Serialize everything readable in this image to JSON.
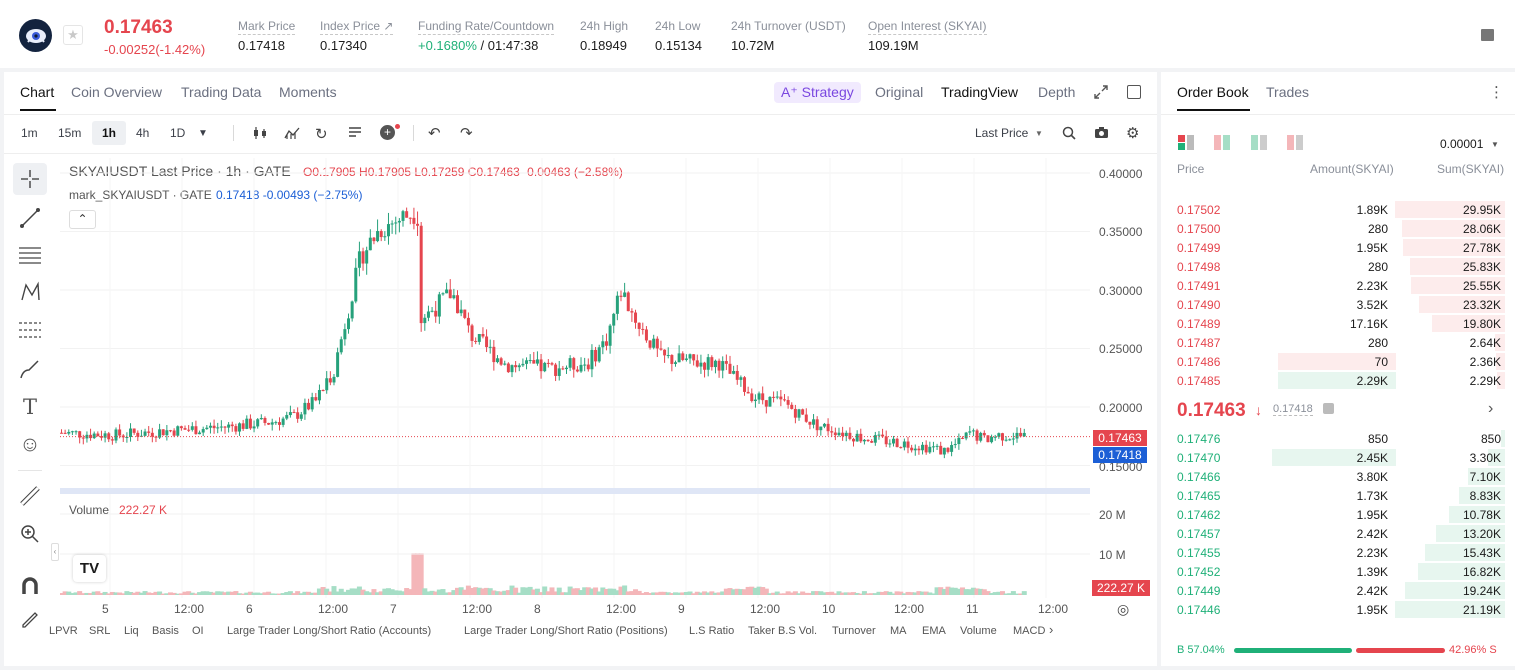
{
  "header": {
    "last_price": "0.17463",
    "price_change": "-0.00252(-1.42%)",
    "stats": [
      {
        "label": "Mark Price",
        "value": "0.17418"
      },
      {
        "label": "Index Price ↗",
        "value": "0.17340"
      },
      {
        "label": "Funding Rate/Countdown",
        "value_green": "+0.1680%",
        "value": "/ 01:47:38"
      },
      {
        "label": "24h High",
        "value": "0.18949"
      },
      {
        "label": "24h Low",
        "value": "0.15134"
      },
      {
        "label": "24h Turnover (USDT)",
        "value": "10.72M"
      },
      {
        "label": "Open Interest (SKYAI)",
        "value": "109.19M"
      }
    ]
  },
  "chart_tabs": [
    "Chart",
    "Coin Overview",
    "Trading Data",
    "Moments"
  ],
  "view_tabs": {
    "strategy": "A⁺ Strategy",
    "original": "Original",
    "tradingview": "TradingView",
    "depth": "Depth"
  },
  "timeframes": [
    "1m",
    "15m",
    "1h",
    "4h",
    "1D"
  ],
  "toolbar": {
    "price_type": "Last Price"
  },
  "legend": {
    "main": "SKYAIUSDT Last Price · 1h · GATE",
    "ohlc": "O0.17905  H0.17905  L0.17259  C0.17463  -0.00463  (−2.58%)",
    "mark": "mark_SKYAIUSDT · GATE",
    "mark_vals": "0.17418  -0.00493  (−2.75%)",
    "volume_label": "Volume",
    "volume_val": "222.27 K"
  },
  "price_axis": [
    "0.40000",
    "0.35000",
    "0.30000",
    "0.25000",
    "0.20000",
    "0.15000"
  ],
  "price_tags": {
    "last": "0.17463",
    "mark": "0.17418",
    "volume": "222.27 K"
  },
  "volume_axis": [
    "20 M",
    "10 M"
  ],
  "time_axis": [
    "5",
    "12:00",
    "6",
    "12:00",
    "7",
    "12:00",
    "8",
    "12:00",
    "9",
    "12:00",
    "10",
    "12:00",
    "11",
    "12:00"
  ],
  "bottom_indicators": [
    "LPVR",
    "SRL",
    "Liq",
    "Basis",
    "OI",
    "Large Trader Long/Short Ratio (Accounts)",
    "Large Trader Long/Short Ratio (Positions)",
    "L.S Ratio",
    "Taker B.S Vol.",
    "Turnover",
    "MA",
    "EMA",
    "Volume",
    "MACD"
  ],
  "colors": {
    "up": "#26a17b",
    "down": "#e5454e",
    "ask": "#e5454e",
    "bid": "#1fb078",
    "accent": "#7a47e0"
  },
  "order_book": {
    "tabs": [
      "Order Book",
      "Trades"
    ],
    "precision": "0.00001",
    "headers": [
      "Price",
      "Amount(SKYAI)",
      "Sum(SKYAI)"
    ],
    "asks": [
      {
        "price": "0.17502",
        "amount": "1.89K",
        "sum": "29.95K",
        "depth": 1.0,
        "amt_depth": 0
      },
      {
        "price": "0.17500",
        "amount": "280",
        "sum": "28.06K",
        "depth": 0.937,
        "amt_depth": 0
      },
      {
        "price": "0.17499",
        "amount": "1.95K",
        "sum": "27.78K",
        "depth": 0.927,
        "amt_depth": 0
      },
      {
        "price": "0.17498",
        "amount": "280",
        "sum": "25.83K",
        "depth": 0.862,
        "amt_depth": 0
      },
      {
        "price": "0.17491",
        "amount": "2.23K",
        "sum": "25.55K",
        "depth": 0.853,
        "amt_depth": 0
      },
      {
        "price": "0.17490",
        "amount": "3.52K",
        "sum": "23.32K",
        "depth": 0.778,
        "amt_depth": 0
      },
      {
        "price": "0.17489",
        "amount": "17.16K",
        "sum": "19.80K",
        "depth": 0.661,
        "amt_depth": 0
      },
      {
        "price": "0.17487",
        "amount": "280",
        "sum": "2.64K",
        "depth": 0.088,
        "amt_depth": 0
      },
      {
        "price": "0.17486",
        "amount": "70",
        "sum": "2.36K",
        "depth": 0.079,
        "amt_depth": 0.95
      },
      {
        "price": "0.17485",
        "amount": "2.29K",
        "sum": "2.29K",
        "depth": 0.076,
        "amt_depth": 0.95
      }
    ],
    "mid_price": "0.17463",
    "mid_arrow": "↓",
    "mid_mark": "0.17418",
    "bids": [
      {
        "price": "0.17476",
        "amount": "850",
        "sum": "850",
        "depth": 0.04,
        "amt_depth": 0
      },
      {
        "price": "0.17470",
        "amount": "2.45K",
        "sum": "3.30K",
        "depth": 0.156,
        "amt_depth": 1.0
      },
      {
        "price": "0.17466",
        "amount": "3.80K",
        "sum": "7.10K",
        "depth": 0.335,
        "amt_depth": 0
      },
      {
        "price": "0.17465",
        "amount": "1.73K",
        "sum": "8.83K",
        "depth": 0.417,
        "amt_depth": 0
      },
      {
        "price": "0.17462",
        "amount": "1.95K",
        "sum": "10.78K",
        "depth": 0.509,
        "amt_depth": 0
      },
      {
        "price": "0.17457",
        "amount": "2.42K",
        "sum": "13.20K",
        "depth": 0.623,
        "amt_depth": 0
      },
      {
        "price": "0.17455",
        "amount": "2.23K",
        "sum": "15.43K",
        "depth": 0.729,
        "amt_depth": 0
      },
      {
        "price": "0.17452",
        "amount": "1.39K",
        "sum": "16.82K",
        "depth": 0.794,
        "amt_depth": 0
      },
      {
        "price": "0.17449",
        "amount": "2.42K",
        "sum": "19.24K",
        "depth": 0.909,
        "amt_depth": 0
      },
      {
        "price": "0.17446",
        "amount": "1.95K",
        "sum": "21.19K",
        "depth": 1.0,
        "amt_depth": 0
      }
    ],
    "buy_ratio": "B 57.04%",
    "sell_ratio": "42.96% S",
    "buy_fraction": 0.5704
  }
}
